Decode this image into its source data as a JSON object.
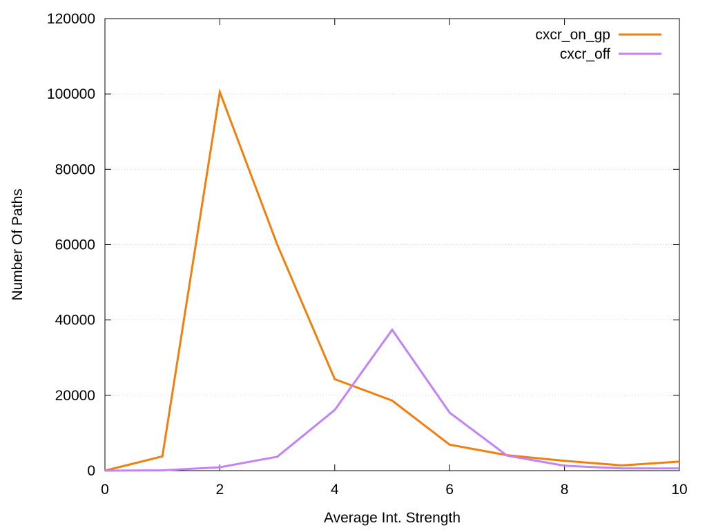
{
  "chart_data": {
    "type": "line",
    "title": "",
    "xlabel": "Average Int. Strength",
    "ylabel": "Number Of Paths",
    "xlim": [
      0,
      10
    ],
    "ylim": [
      0,
      120000
    ],
    "x_ticks": [
      "0",
      "2",
      "4",
      "6",
      "8",
      "10"
    ],
    "y_ticks": [
      "0",
      "20000",
      "40000",
      "60000",
      "80000",
      "100000",
      "120000"
    ],
    "grid": "horizontal dotted",
    "legend_position": "top-right",
    "x": [
      0,
      1,
      2,
      3,
      4,
      5,
      6,
      7,
      8,
      9,
      10
    ],
    "series": [
      {
        "name": "cxcr_on_gp",
        "color": "#f07f0e",
        "values": [
          0,
          3800,
          100500,
          60000,
          24300,
          18600,
          6900,
          4100,
          2600,
          1400,
          2400
        ]
      },
      {
        "name": "cxcr_off",
        "color": "#c382f6",
        "values": [
          0,
          100,
          900,
          3700,
          16100,
          37400,
          15400,
          4000,
          1300,
          600,
          600
        ]
      }
    ]
  }
}
